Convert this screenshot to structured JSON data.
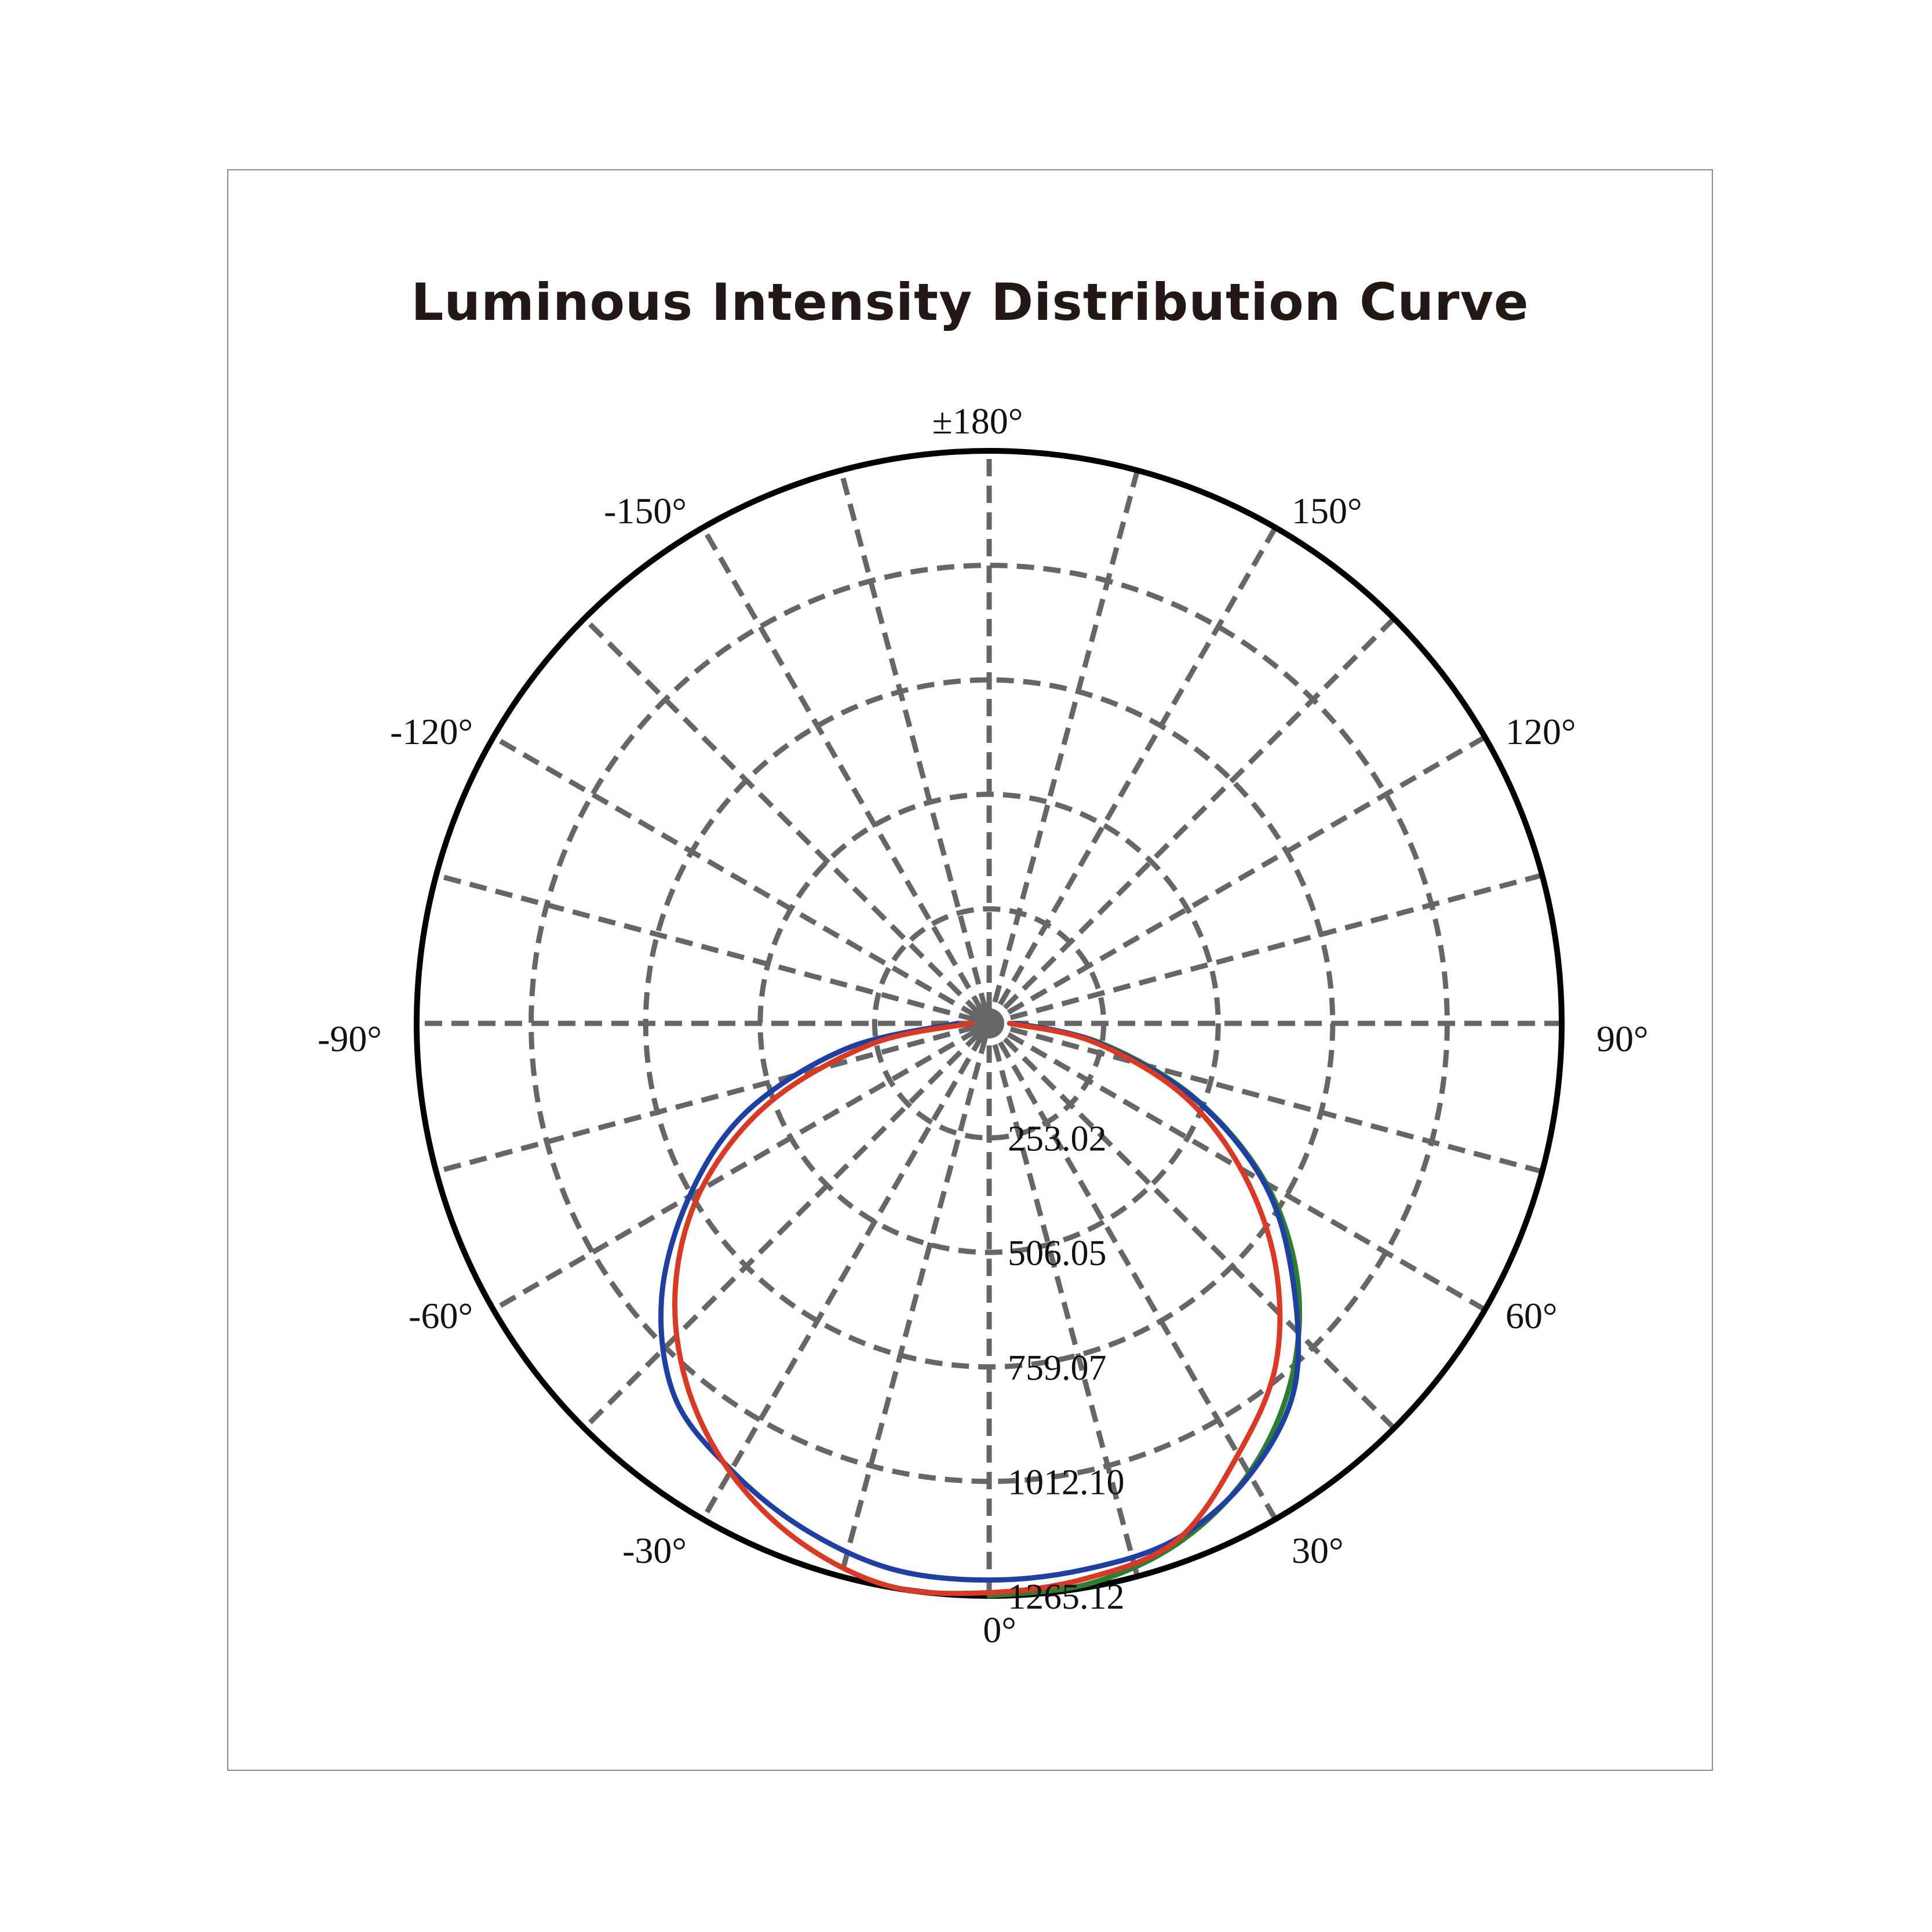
{
  "title": "Luminous Intensity Distribution Curve",
  "chart_data": {
    "type": "polar",
    "title": "Luminous Intensity Distribution Curve",
    "radial_axis": {
      "max": 1265.12,
      "ticks": [
        253.02,
        506.05,
        759.07,
        1012.1,
        1265.12
      ],
      "tick_labels": [
        "253.02",
        "506.05",
        "759.07",
        "1012.10",
        "1265.12"
      ]
    },
    "angular_axis": {
      "zero_direction": "down",
      "spoke_step_deg": 15,
      "labels": [
        {
          "angle": 0,
          "text": "0°"
        },
        {
          "angle": 30,
          "text": "30°"
        },
        {
          "angle": 60,
          "text": "60°"
        },
        {
          "angle": 90,
          "text": "90°"
        },
        {
          "angle": 120,
          "text": "120°"
        },
        {
          "angle": 150,
          "text": "150°"
        },
        {
          "angle": 180,
          "text": "±180°"
        },
        {
          "angle": -150,
          "text": "-150°"
        },
        {
          "angle": -120,
          "text": "-120°"
        },
        {
          "angle": -90,
          "text": "-90°"
        },
        {
          "angle": -60,
          "text": "-60°"
        },
        {
          "angle": -30,
          "text": "-30°"
        }
      ]
    },
    "grid": true,
    "series": [
      {
        "color": "#2e7d32",
        "angles": [
          0,
          10,
          20,
          30,
          40,
          50,
          60,
          70,
          80,
          90
        ],
        "values": [
          1265,
          1258,
          1222,
          1148,
          1036,
          890,
          706,
          484,
          250,
          55
        ]
      },
      {
        "color": "#1e40a0",
        "angles": [
          -90,
          -80,
          -70,
          -60,
          -50,
          -40,
          -30,
          -20,
          -10,
          0,
          10,
          20,
          30,
          40,
          50,
          60,
          70,
          80,
          90
        ],
        "values": [
          70,
          320,
          570,
          765,
          945,
          1080,
          1140,
          1190,
          1225,
          1230,
          1225,
          1212,
          1152,
          1050,
          875,
          700,
          480,
          240,
          60
        ]
      },
      {
        "color": "#d93a26",
        "angles": [
          -90,
          -80,
          -70,
          -60,
          -50,
          -40,
          -30,
          -20,
          -10,
          0,
          10,
          20,
          30,
          40,
          50,
          60,
          70,
          80,
          90
        ],
        "values": [
          40,
          265,
          520,
          735,
          905,
          1040,
          1145,
          1220,
          1263,
          1258,
          1245,
          1215,
          1100,
          985,
          825,
          642,
          450,
          232,
          45
        ]
      }
    ]
  }
}
